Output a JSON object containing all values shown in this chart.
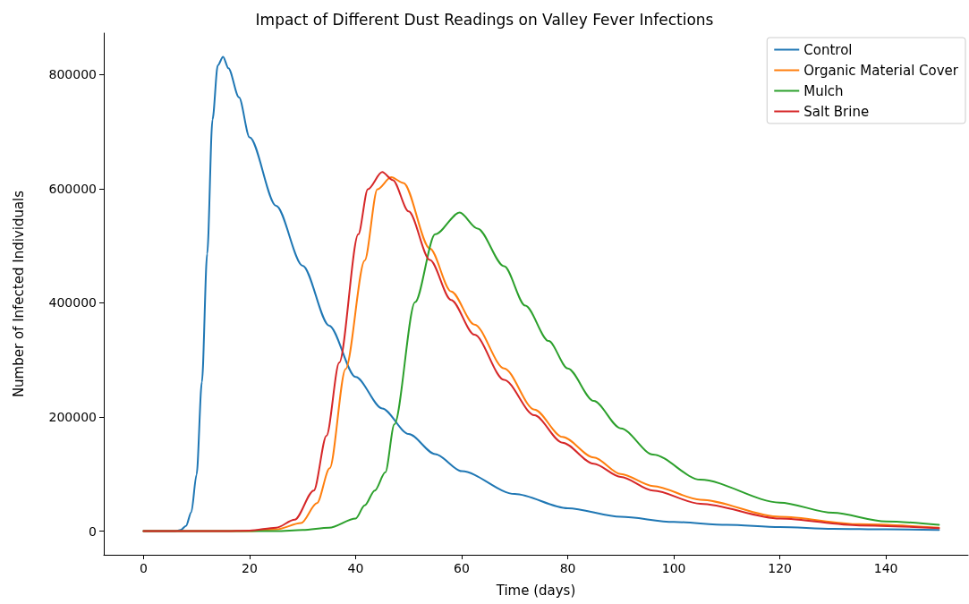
{
  "chart_data": {
    "type": "line",
    "title": "Impact of Different Dust Readings on Valley Fever Infections",
    "xlabel": "Time (days)",
    "ylabel": "Number of Infected Individuals",
    "xlim": [
      -7.5,
      155.5
    ],
    "xticks": [
      0,
      20,
      40,
      60,
      80,
      100,
      120,
      140
    ],
    "ylim": [
      -41500,
      872500
    ],
    "yticks": [
      0,
      200000,
      400000,
      600000,
      800000
    ],
    "grid": false,
    "legend": "top right",
    "marker": "none",
    "line_style": "solid",
    "series": [
      {
        "name": "Control",
        "color": "#1f77b4",
        "x": [
          0,
          6,
          7,
          8,
          9,
          10,
          11,
          12,
          13,
          14,
          15,
          16,
          18,
          20,
          25,
          30,
          35,
          40,
          45,
          50,
          55,
          60,
          70,
          80,
          90,
          100,
          110,
          120,
          130,
          140,
          150
        ],
        "values": [
          0,
          0,
          2000,
          9000,
          33000,
          99000,
          261000,
          486000,
          721000,
          816000,
          831000,
          811000,
          760000,
          690000,
          570000,
          465000,
          360000,
          270000,
          215000,
          170000,
          135000,
          105000,
          65000,
          40000,
          25000,
          16000,
          11000,
          7000,
          4000,
          3000,
          2000
        ]
      },
      {
        "name": "Organic Material Cover",
        "color": "#ff7f0e",
        "x": [
          0,
          20,
          25,
          29.7,
          32.7,
          35.1,
          38.1,
          41.7,
          44.1,
          46.7,
          49,
          54,
          58,
          62.4,
          68,
          73.7,
          79,
          84.9,
          90,
          96.1,
          105,
          120,
          135,
          150
        ],
        "values": [
          0,
          0,
          3000,
          14000,
          49000,
          110000,
          284000,
          474000,
          599000,
          620000,
          610000,
          495000,
          420000,
          362000,
          285000,
          213000,
          165000,
          129000,
          100000,
          79000,
          55000,
          25000,
          12000,
          6000
        ]
      },
      {
        "name": "Mulch",
        "color": "#2ca02c",
        "x": [
          0,
          25,
          30,
          35,
          40,
          41.7,
          43.6,
          45.6,
          47.3,
          51.2,
          55,
          59.6,
          63,
          68,
          72,
          76.4,
          80,
          84.9,
          90,
          96.1,
          105,
          120,
          130,
          140,
          150
        ],
        "values": [
          0,
          0,
          2000,
          6000,
          22000,
          45000,
          71000,
          103000,
          187000,
          401000,
          520000,
          558000,
          530000,
          464000,
          395000,
          333000,
          285000,
          228000,
          180000,
          134000,
          90000,
          50000,
          32000,
          17000,
          11000
        ]
      },
      {
        "name": "Salt Brine",
        "color": "#d62728",
        "x": [
          0,
          15,
          20,
          25,
          28.5,
          32.1,
          34.5,
          36.9,
          40.5,
          42.3,
          45,
          47,
          50,
          54,
          58,
          62.4,
          68,
          73.7,
          79,
          84.9,
          90,
          96.1,
          105,
          120,
          135,
          150
        ],
        "values": [
          0,
          0,
          1000,
          6000,
          20000,
          71000,
          167000,
          295000,
          520000,
          599000,
          629000,
          615000,
          560000,
          475000,
          405000,
          344000,
          265000,
          203000,
          155000,
          118000,
          95000,
          71000,
          48000,
          22000,
          10000,
          5000
        ]
      }
    ]
  }
}
